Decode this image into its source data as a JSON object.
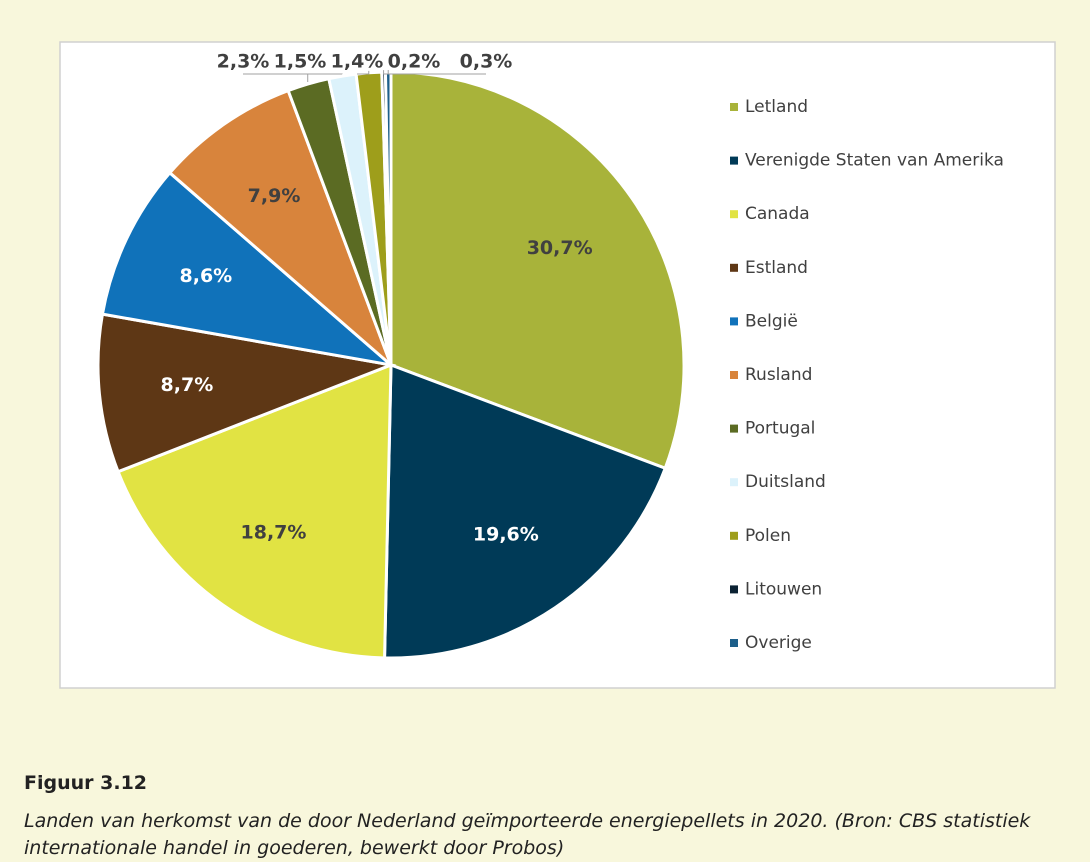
{
  "chart_data": {
    "type": "pie",
    "categories": [
      "Letland",
      "Verenigde Staten van Amerika",
      "Canada",
      "Estland",
      "België",
      "Rusland",
      "Portugal",
      "Duitsland",
      "Polen",
      "Litouwen",
      "Overige"
    ],
    "values": [
      30.7,
      19.6,
      18.7,
      8.7,
      8.6,
      7.9,
      2.3,
      1.5,
      1.4,
      0.2,
      0.3
    ],
    "value_labels": [
      "30,7%",
      "19,6%",
      "18,7%",
      "8,7%",
      "8,6%",
      "7,9%",
      "2,3%",
      "1,5%",
      "1,4%",
      "0,2%",
      "0,3%"
    ],
    "colors": [
      "#a8b33a",
      "#003a57",
      "#e1e343",
      "#5e3715",
      "#1072ba",
      "#d8843c",
      "#5b6b23",
      "#dcf2fb",
      "#9e9e1b",
      "#0b2233",
      "#1d5f8a"
    ],
    "legend": "right",
    "caption_title": "Figuur 3.12",
    "caption": "Landen van herkomst van de door Nederland geïmporteerde energiepellets in 2020. (Bron: CBS statistiek internationale handel in goederen, bewerkt door Probos)"
  }
}
